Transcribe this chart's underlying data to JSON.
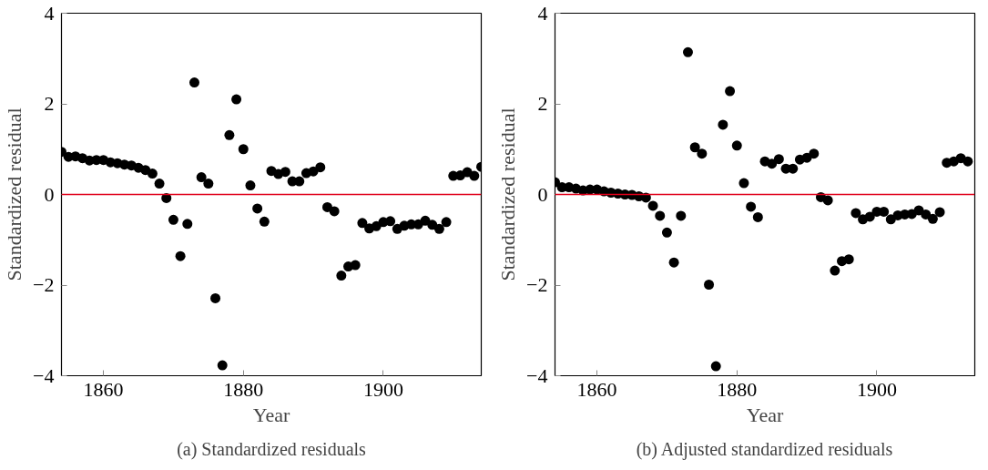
{
  "chart_data": [
    {
      "type": "scatter",
      "xlabel": "Year",
      "ylabel": "Standardized residual",
      "annotations": [
        "(a) Standardized residuals"
      ],
      "color": "#000000",
      "marker": "circle",
      "xlim": [
        1854,
        1914
      ],
      "ylim": [
        -4,
        4
      ],
      "xticks": [
        1860,
        1880,
        1900
      ],
      "yticks": [
        -4,
        -2,
        0,
        2,
        4
      ],
      "ref_lines": [
        {
          "axis": "y",
          "value": 0,
          "color": "#e0001b"
        }
      ],
      "x": [
        1854,
        1855,
        1856,
        1857,
        1858,
        1859,
        1860,
        1861,
        1862,
        1863,
        1864,
        1865,
        1866,
        1867,
        1868,
        1869,
        1870,
        1871,
        1872,
        1873,
        1874,
        1875,
        1876,
        1877,
        1878,
        1879,
        1880,
        1881,
        1882,
        1883,
        1884,
        1885,
        1886,
        1887,
        1888,
        1889,
        1890,
        1891,
        1892,
        1893,
        1894,
        1895,
        1896,
        1897,
        1898,
        1899,
        1900,
        1901,
        1902,
        1903,
        1904,
        1905,
        1906,
        1907,
        1908,
        1909,
        1910,
        1911,
        1912,
        1913,
        1914
      ],
      "values": [
        0.94,
        0.83,
        0.84,
        0.8,
        0.75,
        0.76,
        0.76,
        0.71,
        0.69,
        0.66,
        0.64,
        0.59,
        0.54,
        0.46,
        0.24,
        -0.08,
        -0.56,
        -1.36,
        -0.65,
        2.47,
        0.38,
        0.24,
        -2.29,
        -3.77,
        1.31,
        2.1,
        1.0,
        0.2,
        -0.31,
        -0.6,
        0.52,
        0.45,
        0.5,
        0.29,
        0.29,
        0.47,
        0.51,
        0.6,
        -0.28,
        -0.37,
        -1.79,
        -1.59,
        -1.56,
        -0.63,
        -0.75,
        -0.7,
        -0.61,
        -0.59,
        -0.76,
        -0.69,
        -0.66,
        -0.66,
        -0.58,
        -0.67,
        -0.76,
        -0.61,
        0.41,
        0.42,
        0.49,
        0.41,
        0.61
      ]
    },
    {
      "type": "scatter",
      "xlabel": "Year",
      "ylabel": "Standardized residual",
      "annotations": [
        "(b) Adjusted standardized residuals"
      ],
      "color": "#000000",
      "marker": "circle",
      "xlim": [
        1854,
        1914
      ],
      "ylim": [
        -4,
        4
      ],
      "xticks": [
        1860,
        1880,
        1900
      ],
      "yticks": [
        -4,
        -2,
        0,
        2,
        4
      ],
      "ref_lines": [
        {
          "axis": "y",
          "value": 0,
          "color": "#e0001b"
        }
      ],
      "x": [
        1854,
        1855,
        1856,
        1857,
        1858,
        1859,
        1860,
        1861,
        1862,
        1863,
        1864,
        1865,
        1866,
        1867,
        1868,
        1869,
        1870,
        1871,
        1872,
        1873,
        1874,
        1875,
        1876,
        1877,
        1878,
        1879,
        1880,
        1881,
        1882,
        1883,
        1884,
        1885,
        1886,
        1887,
        1888,
        1889,
        1890,
        1891,
        1892,
        1893,
        1894,
        1895,
        1896,
        1897,
        1898,
        1899,
        1900,
        1901,
        1902,
        1903,
        1904,
        1905,
        1906,
        1907,
        1908,
        1909,
        1910,
        1911,
        1912,
        1913
      ],
      "values": [
        0.27,
        0.16,
        0.16,
        0.13,
        0.09,
        0.11,
        0.11,
        0.07,
        0.04,
        0.02,
        0.0,
        -0.01,
        -0.04,
        -0.07,
        -0.25,
        -0.47,
        -0.84,
        -1.5,
        -0.47,
        3.14,
        1.04,
        0.9,
        -1.99,
        -3.79,
        1.54,
        2.28,
        1.08,
        0.25,
        -0.27,
        -0.5,
        0.73,
        0.68,
        0.78,
        0.57,
        0.57,
        0.77,
        0.81,
        0.9,
        -0.06,
        -0.13,
        -1.68,
        -1.47,
        -1.43,
        -0.41,
        -0.55,
        -0.49,
        -0.38,
        -0.38,
        -0.55,
        -0.46,
        -0.44,
        -0.43,
        -0.35,
        -0.44,
        -0.54,
        -0.39,
        0.7,
        0.73,
        0.8,
        0.73
      ]
    }
  ]
}
